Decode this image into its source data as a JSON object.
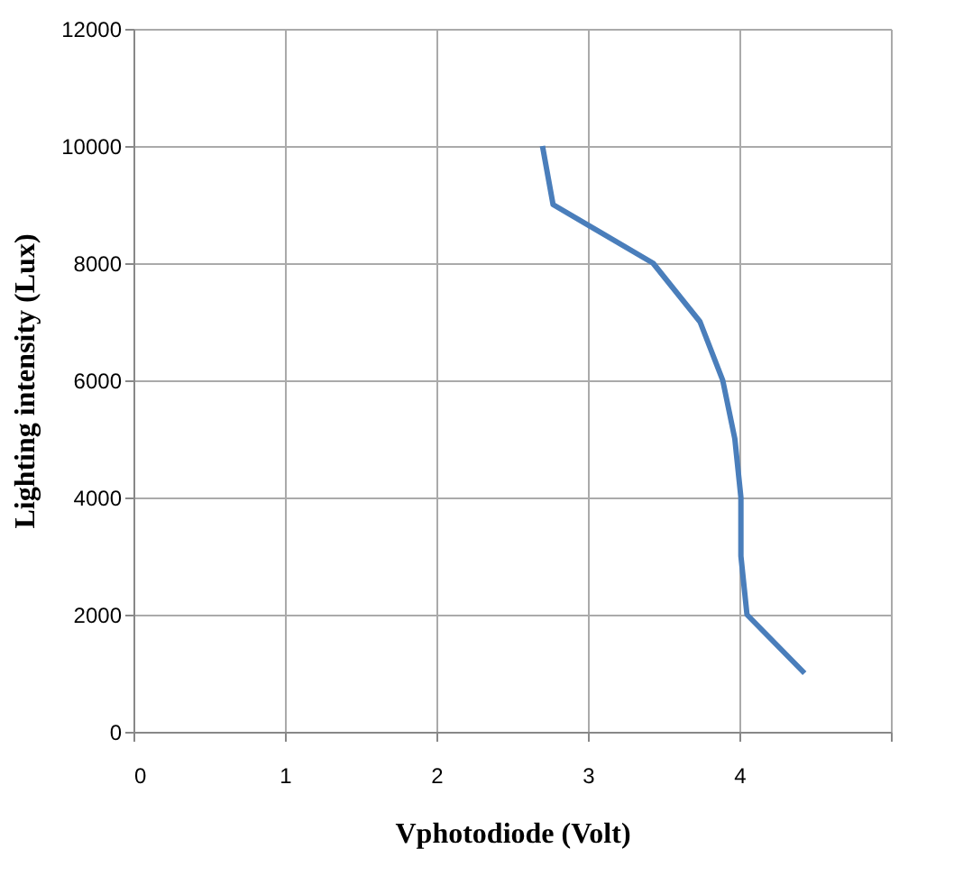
{
  "chart_data": {
    "type": "line",
    "xlabel": "Vphotodiode (Volt)",
    "ylabel": "Lighting intensity (Lux)",
    "series": [
      {
        "color": "#4a7ebb",
        "x": [
          2.7,
          2.77,
          3.43,
          3.74,
          3.89,
          3.97,
          4.01,
          4.01,
          4.05,
          4.43
        ],
        "values": [
          10000,
          9000,
          8000,
          7000,
          6000,
          5000,
          4000,
          3000,
          2000,
          1000
        ]
      }
    ],
    "xlim": [
      0,
      5
    ],
    "xticks": [
      0,
      1,
      2,
      3,
      4,
      {
        "value": 5,
        "label": null
      }
    ],
    "ylim": [
      0,
      12000
    ],
    "yticks": [
      0,
      2000,
      4000,
      6000,
      8000,
      10000,
      12000
    ],
    "grid": true,
    "marker": "none",
    "line_style": "solid"
  }
}
